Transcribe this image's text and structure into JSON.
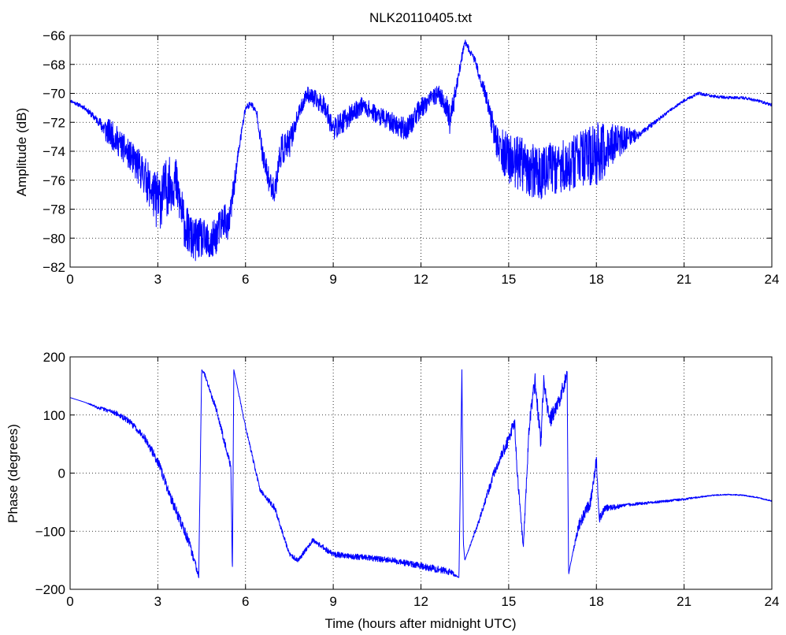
{
  "title": "NLK20110405.txt",
  "colors": {
    "line": "#0000ff",
    "axis": "#000000",
    "grid": "#000000",
    "background": "#ffffff"
  },
  "chart_data": [
    {
      "type": "line",
      "title": "NLK20110405.txt",
      "xlabel": "",
      "ylabel": "Amplitude (dB)",
      "xlim": [
        0,
        24
      ],
      "ylim": [
        -82,
        -66
      ],
      "xticks": [
        0,
        3,
        6,
        9,
        12,
        15,
        18,
        21,
        24
      ],
      "yticks": [
        -82,
        -80,
        -78,
        -76,
        -74,
        -72,
        -70,
        -68,
        -66
      ],
      "xtick_labels": [
        "0",
        "3",
        "6",
        "9",
        "12",
        "15",
        "18",
        "21",
        "24"
      ],
      "ytick_labels": [
        "−82",
        "−80",
        "−78",
        "−76",
        "−74",
        "−72",
        "−70",
        "−68",
        "−66"
      ],
      "grid": true,
      "series": [
        {
          "color": "#0000ff",
          "x": [
            0,
            0.5,
            1.0,
            1.2,
            1.5,
            2.0,
            2.5,
            2.8,
            3.0,
            3.3,
            3.6,
            3.9,
            4.2,
            4.5,
            4.8,
            5.0,
            5.3,
            5.4,
            5.6,
            5.8,
            6.0,
            6.2,
            6.4,
            6.6,
            6.8,
            7.0,
            7.2,
            7.5,
            7.8,
            8.1,
            8.4,
            8.7,
            9.0,
            9.3,
            9.6,
            10.0,
            10.5,
            11.0,
            11.5,
            12.0,
            12.3,
            12.6,
            12.9,
            13.0,
            13.3,
            13.5,
            13.8,
            14.2,
            14.6,
            15.0,
            15.5,
            16.0,
            16.5,
            17.0,
            17.5,
            18.0,
            18.5,
            19.0,
            19.5,
            20.0,
            20.5,
            21.0,
            21.5,
            22.0,
            22.5,
            23.0,
            23.5,
            24.0
          ],
          "y": [
            -70.5,
            -71.0,
            -72.0,
            -72.5,
            -73.0,
            -74.2,
            -75.5,
            -76.8,
            -77.5,
            -76.5,
            -76.0,
            -79.0,
            -80.2,
            -80.0,
            -80.5,
            -79.8,
            -78.5,
            -79.5,
            -76.5,
            -73.5,
            -71.0,
            -70.7,
            -71.5,
            -74.5,
            -76.0,
            -76.8,
            -74.0,
            -73.5,
            -71.5,
            -70.0,
            -70.5,
            -70.8,
            -72.5,
            -72.0,
            -71.5,
            -70.8,
            -71.5,
            -72.0,
            -72.5,
            -71.0,
            -70.5,
            -70.0,
            -71.0,
            -72.0,
            -68.5,
            -66.5,
            -67.5,
            -70.0,
            -73.5,
            -74.5,
            -75.0,
            -75.5,
            -75.2,
            -75.0,
            -74.5,
            -74.3,
            -73.5,
            -73.2,
            -72.8,
            -72.0,
            -71.2,
            -70.5,
            -70.0,
            -70.2,
            -70.3,
            -70.3,
            -70.5,
            -70.8
          ],
          "noise": [
            0.1,
            0.15,
            0.3,
            0.9,
            1.0,
            1.0,
            1.4,
            1.5,
            2.2,
            2.0,
            1.8,
            1.6,
            1.5,
            1.4,
            1.4,
            1.3,
            1.2,
            1.2,
            0.8,
            0.4,
            0.3,
            0.2,
            0.3,
            0.8,
            0.9,
            0.8,
            1.2,
            1.0,
            0.5,
            0.5,
            0.7,
            0.7,
            0.8,
            0.8,
            0.7,
            0.6,
            0.6,
            0.7,
            0.8,
            0.7,
            0.6,
            0.6,
            0.8,
            1.0,
            0.4,
            0.25,
            0.3,
            0.5,
            1.2,
            1.8,
            1.9,
            1.9,
            1.8,
            1.8,
            1.9,
            2.3,
            1.5,
            0.9,
            0.2,
            0.15,
            0.1,
            0.1,
            0.1,
            0.1,
            0.1,
            0.1,
            0.1,
            0.1
          ]
        }
      ]
    },
    {
      "type": "line",
      "title": "",
      "xlabel": "Time (hours after midnight UTC)",
      "ylabel": "Phase (degrees)",
      "xlim": [
        0,
        24
      ],
      "ylim": [
        -200,
        200
      ],
      "xticks": [
        0,
        3,
        6,
        9,
        12,
        15,
        18,
        21,
        24
      ],
      "yticks": [
        -200,
        -100,
        0,
        100,
        200
      ],
      "xtick_labels": [
        "0",
        "3",
        "6",
        "9",
        "12",
        "15",
        "18",
        "21",
        "24"
      ],
      "ytick_labels": [
        "−200",
        "−100",
        "0",
        "100",
        "200"
      ],
      "grid": true,
      "series": [
        {
          "color": "#0000ff",
          "x": [
            0,
            0.5,
            1.0,
            1.5,
            2.0,
            2.5,
            3.0,
            3.5,
            4.0,
            4.4,
            4.5,
            4.6,
            5.0,
            5.5,
            5.55,
            5.6,
            6.0,
            6.5,
            7.0,
            7.5,
            7.8,
            8.3,
            9.0,
            10.0,
            11.0,
            12.0,
            13.0,
            13.3,
            13.4,
            13.45,
            13.5,
            14.0,
            14.5,
            15.0,
            15.2,
            15.3,
            15.5,
            15.7,
            15.9,
            16.1,
            16.2,
            16.4,
            16.7,
            17.0,
            17.05,
            17.1,
            17.4,
            17.8,
            18.0,
            18.1,
            18.3,
            18.5,
            19.0,
            20.0,
            21.0,
            22.0,
            22.5,
            23.0,
            23.5,
            24.0
          ],
          "y": [
            130,
            122,
            112,
            105,
            90,
            65,
            20,
            -50,
            -110,
            -175,
            178,
            170,
            110,
            10,
            -175,
            178,
            80,
            -30,
            -60,
            -140,
            -150,
            -115,
            -140,
            -145,
            -150,
            -160,
            -170,
            -180,
            178,
            -120,
            -150,
            -80,
            0,
            60,
            90,
            -5,
            -130,
            80,
            160,
            50,
            160,
            90,
            120,
            170,
            -175,
            -160,
            -90,
            -50,
            20,
            -80,
            -60,
            -60,
            -55,
            -50,
            -45,
            -38,
            -37,
            -38,
            -42,
            -48
          ],
          "noise": [
            0,
            0,
            3,
            4,
            5,
            6,
            8,
            9,
            10,
            6,
            0,
            4,
            6,
            6,
            0,
            0,
            4,
            4,
            5,
            4,
            4,
            4,
            5,
            5,
            5,
            6,
            6,
            0,
            0,
            0,
            0,
            5,
            8,
            12,
            12,
            10,
            8,
            15,
            15,
            15,
            15,
            15,
            14,
            12,
            0,
            0,
            10,
            10,
            12,
            8,
            6,
            5,
            3,
            2,
            2,
            1,
            1,
            1,
            1,
            1
          ]
        }
      ]
    }
  ]
}
